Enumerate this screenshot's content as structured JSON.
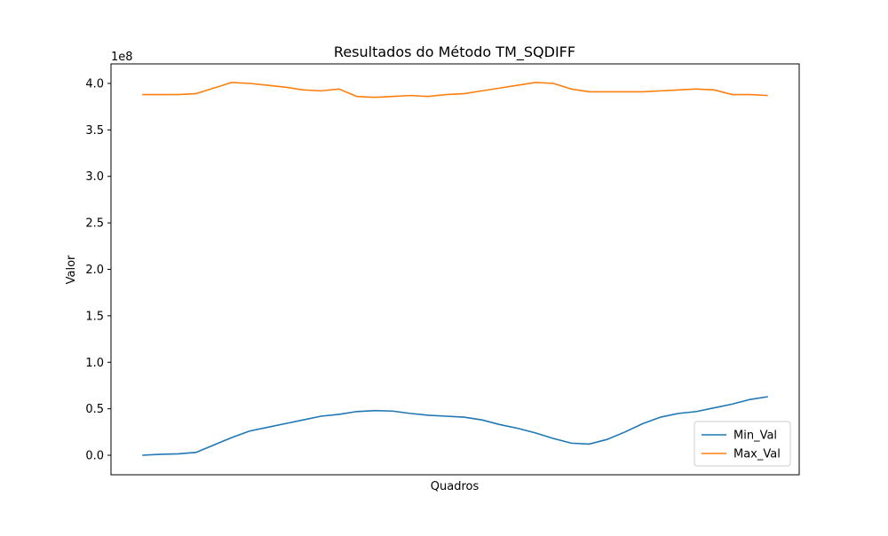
{
  "chart_data": {
    "type": "line",
    "title": "Resultados do Método TM_SQDIFF",
    "xlabel": "Quadros",
    "ylabel": "Valor",
    "y_offset_label": "1e8",
    "x": [
      0,
      1,
      2,
      3,
      4,
      5,
      6,
      7,
      8,
      9,
      10,
      11,
      12,
      13,
      14,
      15,
      16,
      17,
      18,
      19,
      20,
      21,
      22,
      23,
      24,
      25,
      26,
      27,
      28,
      29,
      30,
      31,
      32,
      33,
      34,
      35
    ],
    "xlim": [
      -1.75,
      36.75
    ],
    "ylim": [
      -0.21,
      4.21
    ],
    "yticks": [
      {
        "value": 0,
        "label": "0.0"
      },
      0.5,
      {
        "value": 1,
        "label": "1.0"
      },
      1.5,
      {
        "value": 2,
        "label": "2.0"
      },
      2.5,
      {
        "value": 3,
        "label": "3.0"
      },
      3.5,
      {
        "value": 4,
        "label": "4.0"
      }
    ],
    "legend": "lower right",
    "series": [
      {
        "name": "Min_Val",
        "color": "#1f77b4",
        "values": [
          0.0,
          0.01,
          0.015,
          0.03,
          0.11,
          0.19,
          0.26,
          0.3,
          0.34,
          0.38,
          0.42,
          0.44,
          0.47,
          0.48,
          0.475,
          0.45,
          0.43,
          0.42,
          0.41,
          0.38,
          0.33,
          0.29,
          0.24,
          0.18,
          0.13,
          0.12,
          0.17,
          0.25,
          0.34,
          0.41,
          0.45,
          0.47,
          0.51,
          0.55,
          0.6,
          0.63
        ]
      },
      {
        "name": "Max_Val",
        "color": "#ff7f0e",
        "values": [
          3.88,
          3.88,
          3.88,
          3.89,
          3.95,
          4.01,
          4.0,
          3.98,
          3.96,
          3.93,
          3.92,
          3.94,
          3.86,
          3.85,
          3.86,
          3.87,
          3.86,
          3.88,
          3.89,
          3.92,
          3.95,
          3.98,
          4.01,
          4.0,
          3.94,
          3.91,
          3.91,
          3.91,
          3.91,
          3.92,
          3.93,
          3.94,
          3.93,
          3.88,
          3.88,
          3.87
        ]
      }
    ]
  }
}
